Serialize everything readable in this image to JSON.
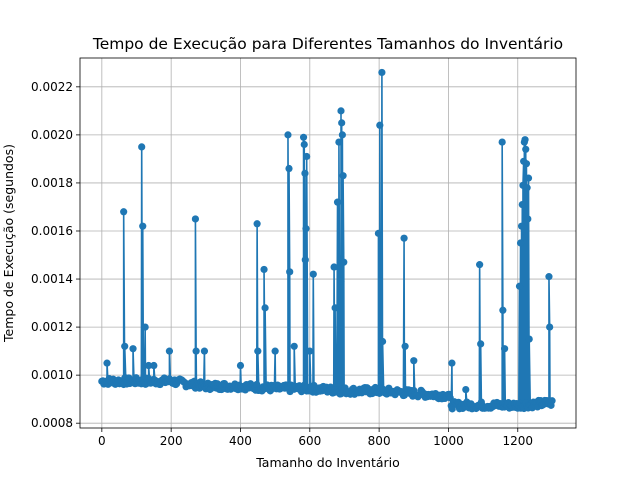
{
  "chart_data": {
    "type": "line",
    "title": "Tempo de Execução para Diferentes Tamanhos do Inventário",
    "xlabel": "Tamanho do Inventário",
    "ylabel": "Tempo de Execução (segundos)",
    "xlim": [
      -63,
      1368
    ],
    "ylim": [
      0.00078,
      0.00232
    ],
    "xticks": [
      0,
      200,
      400,
      600,
      800,
      1000,
      1200
    ],
    "yticks": [
      0.0008,
      0.001,
      0.0012,
      0.0014,
      0.0016,
      0.0018,
      0.002,
      0.0022
    ],
    "ytick_labels": [
      "0.0008",
      "0.0010",
      "0.0012",
      "0.0014",
      "0.0016",
      "0.0018",
      "0.0020",
      "0.0022"
    ],
    "grid": true,
    "color": "#1f77b4",
    "marker": "circle",
    "baseline": [
      [
        0,
        0.00097
      ],
      [
        100,
        0.00097
      ],
      [
        200,
        0.00097
      ],
      [
        300,
        0.00095
      ],
      [
        400,
        0.00095
      ],
      [
        500,
        0.00094
      ],
      [
        600,
        0.00094
      ],
      [
        700,
        0.00093
      ],
      [
        800,
        0.00093
      ],
      [
        900,
        0.00092
      ],
      [
        1000,
        0.00091
      ],
      [
        1010,
        0.00087
      ],
      [
        1100,
        0.00087
      ],
      [
        1200,
        0.00087
      ],
      [
        1300,
        0.00088
      ]
    ],
    "spikes": [
      {
        "x": 15,
        "y": 0.00105
      },
      {
        "x": 63,
        "y": 0.00168
      },
      {
        "x": 66,
        "y": 0.00112
      },
      {
        "x": 90,
        "y": 0.00111
      },
      {
        "x": 115,
        "y": 0.00195
      },
      {
        "x": 118,
        "y": 0.00162
      },
      {
        "x": 125,
        "y": 0.0012
      },
      {
        "x": 135,
        "y": 0.00104
      },
      {
        "x": 150,
        "y": 0.00104
      },
      {
        "x": 195,
        "y": 0.0011
      },
      {
        "x": 270,
        "y": 0.00165
      },
      {
        "x": 272,
        "y": 0.0011
      },
      {
        "x": 296,
        "y": 0.0011
      },
      {
        "x": 400,
        "y": 0.00104
      },
      {
        "x": 448,
        "y": 0.00163
      },
      {
        "x": 450,
        "y": 0.0011
      },
      {
        "x": 468,
        "y": 0.00144
      },
      {
        "x": 471,
        "y": 0.00128
      },
      {
        "x": 500,
        "y": 0.0011
      },
      {
        "x": 537,
        "y": 0.002
      },
      {
        "x": 540,
        "y": 0.00186
      },
      {
        "x": 542,
        "y": 0.00143
      },
      {
        "x": 555,
        "y": 0.00112
      },
      {
        "x": 582,
        "y": 0.00199
      },
      {
        "x": 584,
        "y": 0.00196
      },
      {
        "x": 586,
        "y": 0.00184
      },
      {
        "x": 587,
        "y": 0.00148
      },
      {
        "x": 589,
        "y": 0.00161
      },
      {
        "x": 591,
        "y": 0.00191
      },
      {
        "x": 600,
        "y": 0.0011
      },
      {
        "x": 610,
        "y": 0.00142
      },
      {
        "x": 670,
        "y": 0.00145
      },
      {
        "x": 673,
        "y": 0.00128
      },
      {
        "x": 680,
        "y": 0.00172
      },
      {
        "x": 684,
        "y": 0.00197
      },
      {
        "x": 690,
        "y": 0.0021
      },
      {
        "x": 692,
        "y": 0.00205
      },
      {
        "x": 694,
        "y": 0.002
      },
      {
        "x": 696,
        "y": 0.00183
      },
      {
        "x": 698,
        "y": 0.00147
      },
      {
        "x": 690,
        "y": 0.00139
      },
      {
        "x": 798,
        "y": 0.00159
      },
      {
        "x": 802,
        "y": 0.00204
      },
      {
        "x": 808,
        "y": 0.00226
      },
      {
        "x": 810,
        "y": 0.00114
      },
      {
        "x": 872,
        "y": 0.00157
      },
      {
        "x": 875,
        "y": 0.00112
      },
      {
        "x": 900,
        "y": 0.00106
      },
      {
        "x": 1010,
        "y": 0.00105
      },
      {
        "x": 1050,
        "y": 0.00094
      },
      {
        "x": 1090,
        "y": 0.00146
      },
      {
        "x": 1093,
        "y": 0.00113
      },
      {
        "x": 1155,
        "y": 0.00197
      },
      {
        "x": 1157,
        "y": 0.00127
      },
      {
        "x": 1162,
        "y": 0.00111
      },
      {
        "x": 1205,
        "y": 0.00137
      },
      {
        "x": 1208,
        "y": 0.00155
      },
      {
        "x": 1211,
        "y": 0.00162
      },
      {
        "x": 1213,
        "y": 0.00171
      },
      {
        "x": 1215,
        "y": 0.00179
      },
      {
        "x": 1217,
        "y": 0.00189
      },
      {
        "x": 1219,
        "y": 0.00197
      },
      {
        "x": 1221,
        "y": 0.00198
      },
      {
        "x": 1223,
        "y": 0.00194
      },
      {
        "x": 1225,
        "y": 0.00188
      },
      {
        "x": 1227,
        "y": 0.00178
      },
      {
        "x": 1229,
        "y": 0.00165
      },
      {
        "x": 1231,
        "y": 0.00182
      },
      {
        "x": 1233,
        "y": 0.00115
      },
      {
        "x": 1290,
        "y": 0.00141
      },
      {
        "x": 1292,
        "y": 0.0012
      }
    ]
  }
}
